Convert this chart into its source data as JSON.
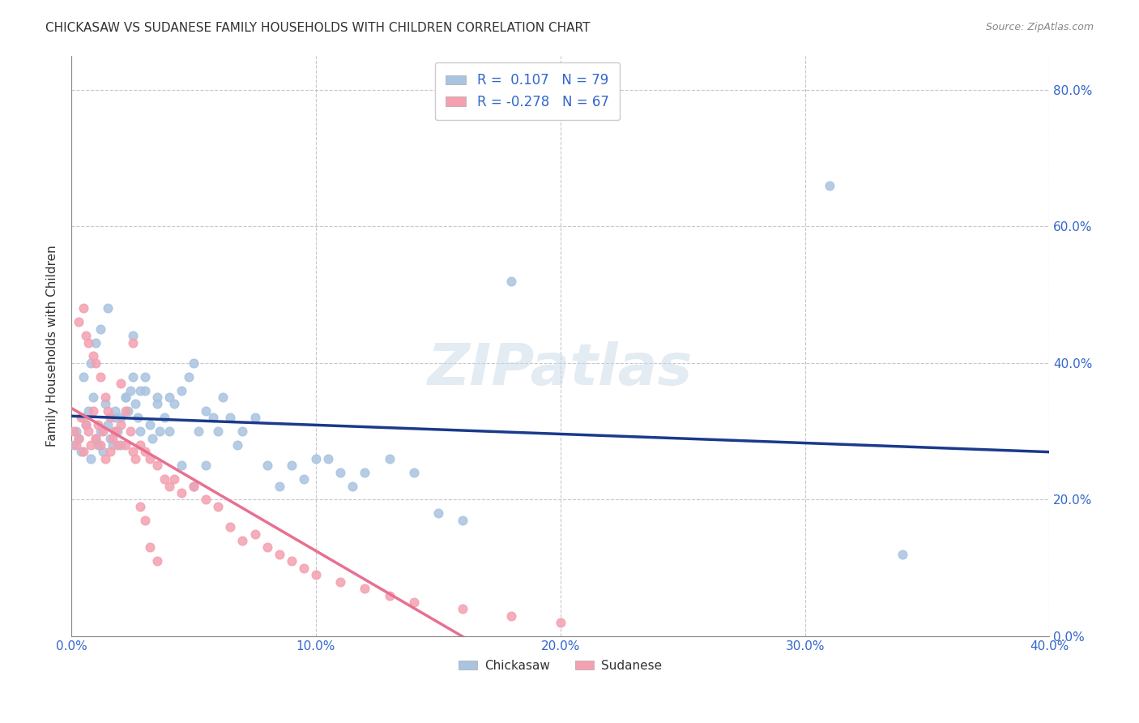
{
  "title": "CHICKASAW VS SUDANESE FAMILY HOUSEHOLDS WITH CHILDREN CORRELATION CHART",
  "source": "Source: ZipAtlas.com",
  "ylabel": "Family Households with Children",
  "xlabel_chickasaw": "Chickasaw",
  "xlabel_sudanese": "Sudanese",
  "chickasaw_color": "#a8c4e0",
  "sudanese_color": "#f4a0b0",
  "chickasaw_line_color": "#1a3a8c",
  "sudanese_line_color": "#e87090",
  "watermark": "ZIPatlas",
  "R_chickasaw": 0.107,
  "N_chickasaw": 79,
  "R_sudanese": -0.278,
  "N_sudanese": 67,
  "xlim": [
    0.0,
    0.4
  ],
  "ylim": [
    0.0,
    0.85
  ],
  "chickasaw_x": [
    0.001,
    0.002,
    0.003,
    0.004,
    0.005,
    0.006,
    0.007,
    0.008,
    0.009,
    0.01,
    0.011,
    0.012,
    0.013,
    0.014,
    0.015,
    0.016,
    0.017,
    0.018,
    0.019,
    0.02,
    0.022,
    0.023,
    0.024,
    0.025,
    0.026,
    0.027,
    0.028,
    0.03,
    0.032,
    0.033,
    0.035,
    0.036,
    0.038,
    0.04,
    0.042,
    0.045,
    0.048,
    0.05,
    0.052,
    0.055,
    0.058,
    0.06,
    0.062,
    0.065,
    0.068,
    0.07,
    0.075,
    0.08,
    0.085,
    0.09,
    0.095,
    0.1,
    0.105,
    0.11,
    0.115,
    0.12,
    0.13,
    0.14,
    0.15,
    0.16,
    0.005,
    0.008,
    0.01,
    0.012,
    0.015,
    0.018,
    0.02,
    0.022,
    0.025,
    0.028,
    0.03,
    0.035,
    0.04,
    0.045,
    0.05,
    0.055,
    0.18,
    0.31,
    0.34
  ],
  "chickasaw_y": [
    0.28,
    0.3,
    0.29,
    0.27,
    0.32,
    0.31,
    0.33,
    0.26,
    0.35,
    0.29,
    0.28,
    0.3,
    0.27,
    0.34,
    0.31,
    0.29,
    0.28,
    0.33,
    0.3,
    0.32,
    0.35,
    0.33,
    0.36,
    0.38,
    0.34,
    0.32,
    0.3,
    0.36,
    0.31,
    0.29,
    0.34,
    0.3,
    0.32,
    0.35,
    0.34,
    0.36,
    0.38,
    0.4,
    0.3,
    0.33,
    0.32,
    0.3,
    0.35,
    0.32,
    0.28,
    0.3,
    0.32,
    0.25,
    0.22,
    0.25,
    0.23,
    0.26,
    0.26,
    0.24,
    0.22,
    0.24,
    0.26,
    0.24,
    0.18,
    0.17,
    0.38,
    0.4,
    0.43,
    0.45,
    0.48,
    0.32,
    0.28,
    0.35,
    0.44,
    0.36,
    0.38,
    0.35,
    0.3,
    0.25,
    0.22,
    0.25,
    0.52,
    0.66,
    0.12
  ],
  "sudanese_x": [
    0.001,
    0.002,
    0.003,
    0.004,
    0.005,
    0.006,
    0.007,
    0.008,
    0.009,
    0.01,
    0.011,
    0.012,
    0.013,
    0.014,
    0.015,
    0.016,
    0.017,
    0.018,
    0.019,
    0.02,
    0.022,
    0.024,
    0.025,
    0.026,
    0.028,
    0.03,
    0.032,
    0.035,
    0.038,
    0.04,
    0.042,
    0.045,
    0.05,
    0.055,
    0.06,
    0.065,
    0.07,
    0.075,
    0.08,
    0.085,
    0.09,
    0.095,
    0.1,
    0.11,
    0.12,
    0.13,
    0.14,
    0.16,
    0.18,
    0.2,
    0.003,
    0.005,
    0.006,
    0.007,
    0.009,
    0.01,
    0.012,
    0.014,
    0.016,
    0.018,
    0.02,
    0.022,
    0.025,
    0.028,
    0.03,
    0.032,
    0.035
  ],
  "sudanese_y": [
    0.3,
    0.28,
    0.29,
    0.32,
    0.27,
    0.31,
    0.3,
    0.28,
    0.33,
    0.29,
    0.31,
    0.28,
    0.3,
    0.26,
    0.33,
    0.27,
    0.29,
    0.3,
    0.28,
    0.31,
    0.28,
    0.3,
    0.27,
    0.26,
    0.28,
    0.27,
    0.26,
    0.25,
    0.23,
    0.22,
    0.23,
    0.21,
    0.22,
    0.2,
    0.19,
    0.16,
    0.14,
    0.15,
    0.13,
    0.12,
    0.11,
    0.1,
    0.09,
    0.08,
    0.07,
    0.06,
    0.05,
    0.04,
    0.03,
    0.02,
    0.46,
    0.48,
    0.44,
    0.43,
    0.41,
    0.4,
    0.38,
    0.35,
    0.32,
    0.3,
    0.37,
    0.33,
    0.43,
    0.19,
    0.17,
    0.13,
    0.11
  ]
}
